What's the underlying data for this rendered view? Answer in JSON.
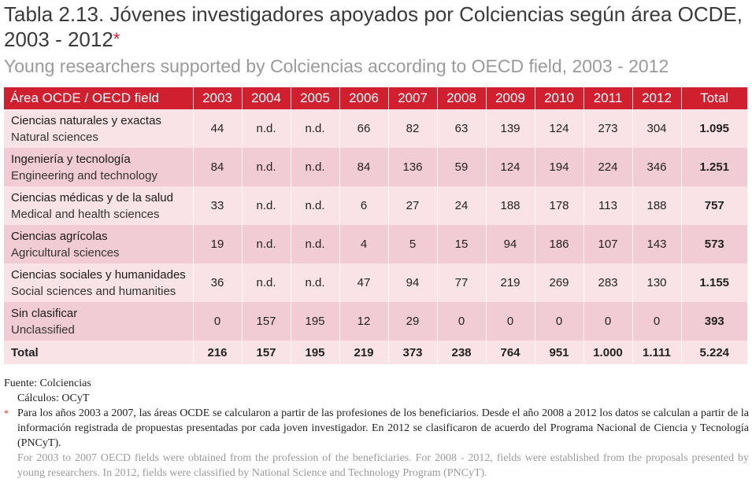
{
  "title": {
    "text": "Tabla 2.13. Jóvenes investigadores apoyados por Colciencias según área OCDE, 2003 - 2012",
    "asterisk": "*"
  },
  "subtitle": "Young researchers supported by Colciencias according to OECD field, 2003 - 2012",
  "table": {
    "header": [
      "Área OCDE / OECD field",
      "2003",
      "2004",
      "2005",
      "2006",
      "2007",
      "2008",
      "2009",
      "2010",
      "2011",
      "2012",
      "Total"
    ],
    "rows": [
      {
        "es": "Ciencias naturales y exactas",
        "en": "Natural sciences",
        "values": [
          "44",
          "n.d.",
          "n.d.",
          "66",
          "82",
          "63",
          "139",
          "124",
          "273",
          "304"
        ],
        "total": "1.095"
      },
      {
        "es": "Ingeniería y tecnología",
        "en": "Engineering and technology",
        "values": [
          "84",
          "n.d.",
          "n.d.",
          "84",
          "136",
          "59",
          "124",
          "194",
          "224",
          "346"
        ],
        "total": "1.251"
      },
      {
        "es": "Ciencias médicas y de la salud",
        "en": "Medical and health sciences",
        "values": [
          "33",
          "n.d.",
          "n.d.",
          "6",
          "27",
          "24",
          "188",
          "178",
          "113",
          "188"
        ],
        "total": "757"
      },
      {
        "es": "Ciencias agrícolas",
        "en": "Agricultural sciences",
        "values": [
          "19",
          "n.d.",
          "n.d.",
          "4",
          "5",
          "15",
          "94",
          "186",
          "107",
          "143"
        ],
        "total": "573"
      },
      {
        "es": "Ciencias sociales y humanidades",
        "en": "Social sciences and humanities",
        "values": [
          "36",
          "n.d.",
          "n.d.",
          "47",
          "94",
          "77",
          "219",
          "269",
          "283",
          "130"
        ],
        "total": "1.155"
      },
      {
        "es": "Sin clasificar",
        "en": "Unclassified",
        "values": [
          "0",
          "157",
          "195",
          "12",
          "29",
          "0",
          "0",
          "0",
          "0",
          "0"
        ],
        "total": "393"
      }
    ],
    "total_row": {
      "label": "Total",
      "values": [
        "216",
        "157",
        "195",
        "219",
        "373",
        "238",
        "764",
        "951",
        "1.000",
        "1.111"
      ],
      "total": "5.224"
    }
  },
  "notes": {
    "source": "Fuente: Colciencias",
    "calc": "Cálculos: OCyT",
    "footnote_mark": "*",
    "footnote_es": "Para los años 2003 a 2007, las áreas OCDE se calcularon a partir de las profesiones de los beneficiarios. Desde el año 2008 a 2012 los datos se calculan a partir de la información registrada de propuestas presentadas por cada joven investigador. En 2012 se clasificaron de acuerdo del Programa Nacional de Ciencia y Tecnología (PNCyT).",
    "footnote_en": "For 2003 to 2007 OECD fields were obtained from the profession of the beneficiaries. For 2008 - 2012, fields were established from the proposals presented by young researchers. In 2012, fields were classified by National Science and Technology Program (PNCyT)."
  },
  "colors": {
    "header_bg": "#d01f2e",
    "row_light": "#f9e3e7",
    "row_dark": "#f2ccd4",
    "subtitle": "#9a9a9a"
  }
}
